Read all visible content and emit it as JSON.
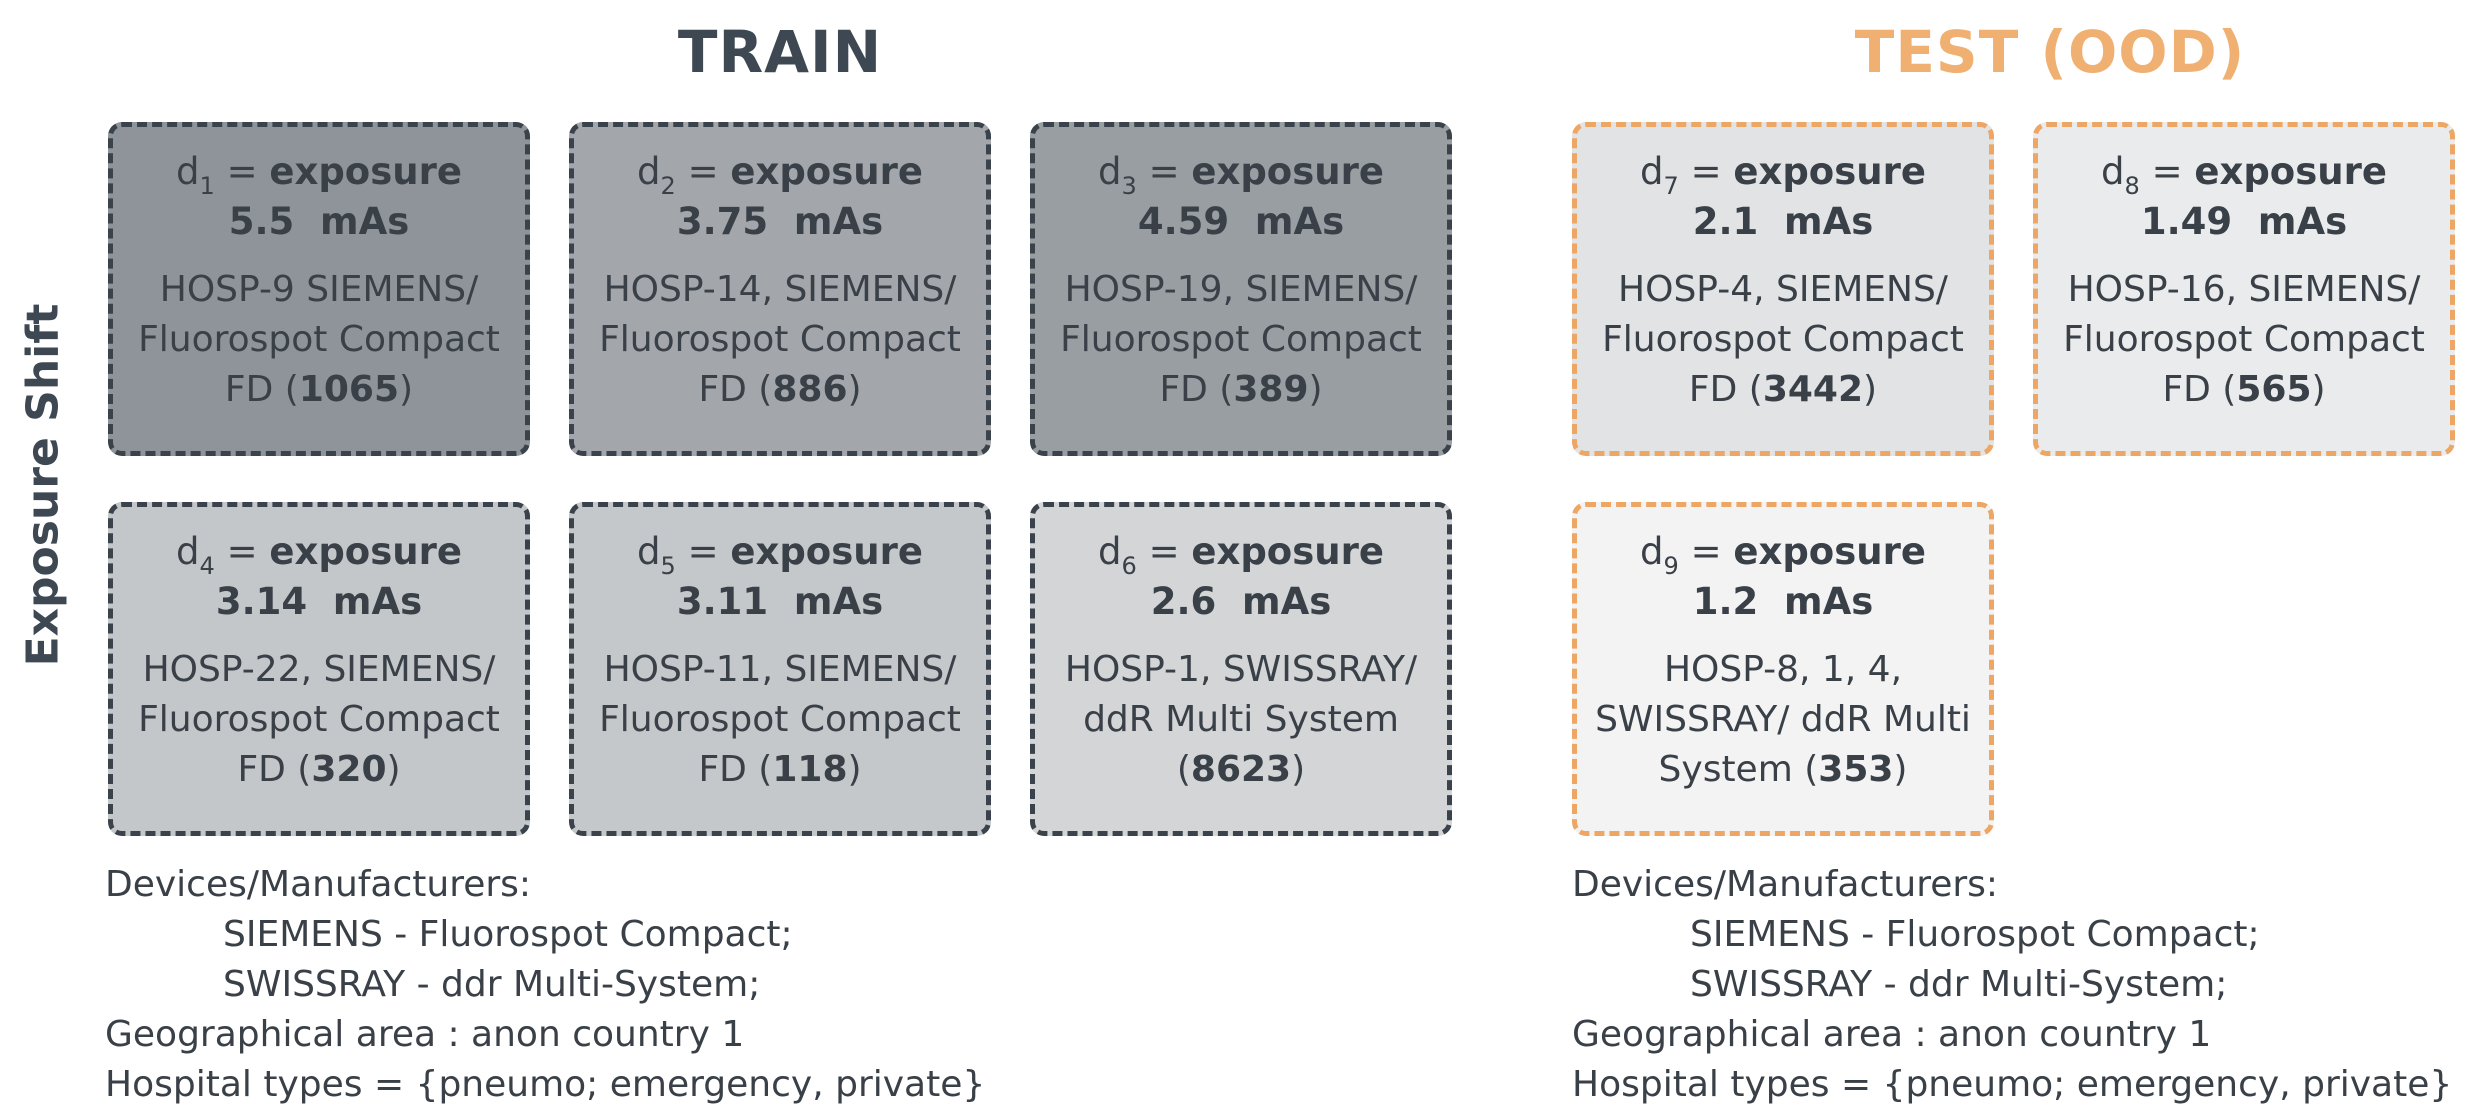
{
  "train": {
    "title": "TRAIN",
    "boxes": [
      {
        "var": "d",
        "sub": "1",
        "eq": " = ",
        "key": "exposure",
        "value": "5.5  mAs",
        "desc": "HOSP-9 SIEMENS/ Fluorospot Compact FD (",
        "count": "1065",
        "tail": ")",
        "bg": "#8f949a"
      },
      {
        "var": "d",
        "sub": "2",
        "eq": " = ",
        "key": "exposure",
        "value": "3.75  mAs",
        "desc": "HOSP-14, SIEMENS/ Fluorospot Compact FD (",
        "count": "886",
        "tail": ")",
        "bg": "#a3a7ac"
      },
      {
        "var": "d",
        "sub": "3",
        "eq": " = ",
        "key": "exposure",
        "value": "4.59  mAs",
        "desc": "HOSP-19, SIEMENS/ Fluorospot Compact FD (",
        "count": "389",
        "tail": ")",
        "bg": "#999ea3"
      },
      {
        "var": "d",
        "sub": "4",
        "eq": " = ",
        "key": "exposure",
        "value": "3.14  mAs",
        "desc": "HOSP-22, SIEMENS/ Fluorospot Compact FD (",
        "count": "320",
        "tail": ")",
        "bg": "#c4c7ca"
      },
      {
        "var": "d",
        "sub": "5",
        "eq": " = ",
        "key": "exposure",
        "value": "3.11  mAs",
        "desc": "HOSP-11, SIEMENS/ Fluorospot Compact FD (",
        "count": "118",
        "tail": ")",
        "bg": "#c5c8cb"
      },
      {
        "var": "d",
        "sub": "6",
        "eq": " = ",
        "key": "exposure",
        "value": "2.6  mAs",
        "desc": "HOSP-1, SWISSRAY/ ddR Multi System (",
        "count": "8623",
        "tail": ")",
        "bg": "#d3d5d7"
      }
    ],
    "footer": {
      "devices_label": "Devices/Manufacturers:",
      "device1": "SIEMENS - Fluorospot Compact;",
      "device2": "SWISSRAY - ddr Multi-System;",
      "geo": "Geographical area : anon country 1",
      "hospital_types": "Hospital types = {pneumo; emergency, private}"
    }
  },
  "test": {
    "title": "TEST (OOD)",
    "boxes": [
      {
        "var": "d",
        "sub": "7",
        "eq": " = ",
        "key": "exposure",
        "value": "2.1  mAs",
        "desc": "HOSP-4, SIEMENS/ Fluorospot Compact FD (",
        "count": "3442",
        "tail": ")",
        "bg": "#e2e3e5"
      },
      {
        "var": "d",
        "sub": "8",
        "eq": " = ",
        "key": "exposure",
        "value": "1.49  mAs",
        "desc": "HOSP-16, SIEMENS/ Fluorospot Compact FD (",
        "count": "565",
        "tail": ")",
        "bg": "#eaebec"
      },
      {
        "var": "d",
        "sub": "9",
        "eq": " = ",
        "key": "exposure",
        "value": "1.2  mAs",
        "desc": "HOSP-8, 1, 4, SWISSRAY/ ddR Multi System  (",
        "count": "353",
        "tail": ")",
        "bg": "#f3f3f4"
      }
    ],
    "footer": {
      "devices_label": "Devices/Manufacturers:",
      "device1": "SIEMENS - Fluorospot Compact;",
      "device2": "SWISSRAY - ddr Multi-System;",
      "geo": "Geographical area : anon country 1",
      "hospital_types": "Hospital types = {pneumo; emergency, private}"
    }
  },
  "axis_label": "Exposure Shift",
  "colors": {
    "train_border": "#3a424b",
    "test_border": "#eda664",
    "test_title": "#efb072"
  }
}
